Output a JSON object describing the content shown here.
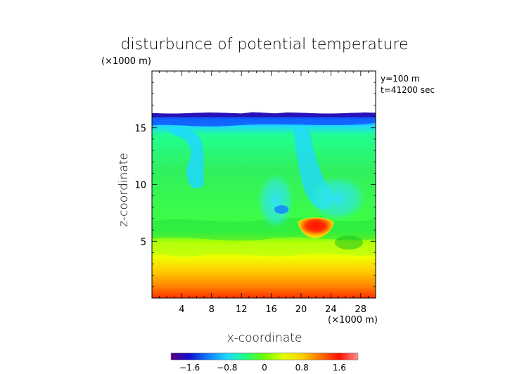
{
  "chart_data": {
    "type": "heatmap",
    "title": "disturbunce of potential temperature",
    "xlabel": "x-coordinate",
    "ylabel": "z-coordinate",
    "x_unit": "(×1000 m)",
    "z_unit": "(×1000 m)",
    "annotations": [
      "y=100 m",
      "t=41200 sec"
    ],
    "xlim": [
      0,
      30
    ],
    "ylim": [
      0,
      20
    ],
    "x_ticks": [
      4,
      8,
      12,
      16,
      20,
      24,
      28
    ],
    "y_ticks": [
      5,
      10,
      15
    ],
    "colorbar": {
      "range": [
        -2.0,
        2.0
      ],
      "tick_values": [
        -1.6,
        -0.8,
        0,
        0.8,
        1.6
      ],
      "tick_labels": [
        "−1.6",
        "−0.8",
        "0",
        "0.8",
        "1.6"
      ],
      "colors": [
        "#5a0088",
        "#1010d0",
        "#1080ff",
        "#20d8ff",
        "#20ff80",
        "#70ff00",
        "#e0ff00",
        "#ffd000",
        "#ff7000",
        "#ff1000",
        "#ff9090"
      ]
    },
    "field_top_z": 16.3,
    "features": [
      {
        "description": "cold layer near top",
        "z_range": [
          15.6,
          16.4
        ],
        "value": -1.6
      },
      {
        "description": "warm cell",
        "x": 22,
        "z": 6.8,
        "value": 1.6
      },
      {
        "description": "near-surface warm layer",
        "z_range": [
          0,
          5
        ],
        "value": 0.8
      }
    ]
  }
}
